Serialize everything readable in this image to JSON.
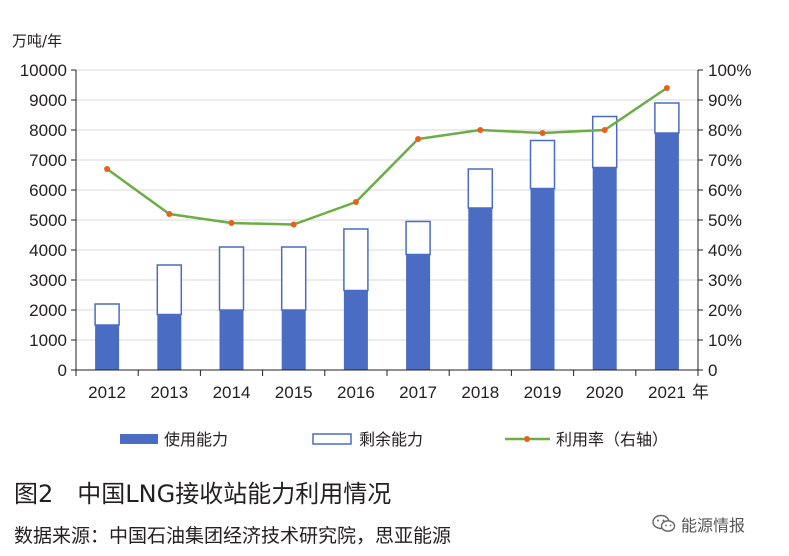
{
  "y_unit": "万吨/年",
  "x_unit": "年",
  "caption": "图2　中国LNG接收站能力利用情况",
  "source": "数据来源：中国石油集团经济技术研究院，思亚能源",
  "watermark": "能源情报",
  "colors": {
    "used": "#4a6cc3",
    "remaining_border": "#4a6cc3",
    "rate_line": "#6aae45",
    "rate_marker": "#e8601c"
  },
  "chart_data": {
    "type": "bar",
    "stacked": true,
    "categories": [
      "2012",
      "2013",
      "2014",
      "2015",
      "2016",
      "2017",
      "2018",
      "2019",
      "2020",
      "2021"
    ],
    "series": [
      {
        "name": "使用能力",
        "type": "bar",
        "axis": "left",
        "values": [
          1500,
          1850,
          2000,
          2000,
          2650,
          3850,
          5400,
          6050,
          6750,
          7900
        ]
      },
      {
        "name": "剩余能力",
        "type": "bar",
        "axis": "left",
        "values": [
          700,
          1650,
          2100,
          2100,
          2050,
          1100,
          1300,
          1600,
          1700,
          1000
        ]
      },
      {
        "name": "利用率（右轴）",
        "type": "line",
        "axis": "right",
        "values": [
          0.67,
          0.52,
          0.49,
          0.485,
          0.56,
          0.77,
          0.8,
          0.79,
          0.8,
          0.94
        ]
      }
    ],
    "y_left": {
      "min": 0,
      "max": 10000,
      "step": 1000,
      "ticks": [
        "0",
        "1000",
        "2000",
        "3000",
        "4000",
        "5000",
        "6000",
        "7000",
        "8000",
        "9000",
        "10000"
      ]
    },
    "y_right": {
      "min": 0,
      "max": 1,
      "step": 0.1,
      "ticks": [
        "0",
        "10%",
        "20%",
        "30%",
        "40%",
        "50%",
        "60%",
        "70%",
        "80%",
        "90%",
        "100%"
      ]
    },
    "grid": true,
    "legend": "bottom"
  }
}
